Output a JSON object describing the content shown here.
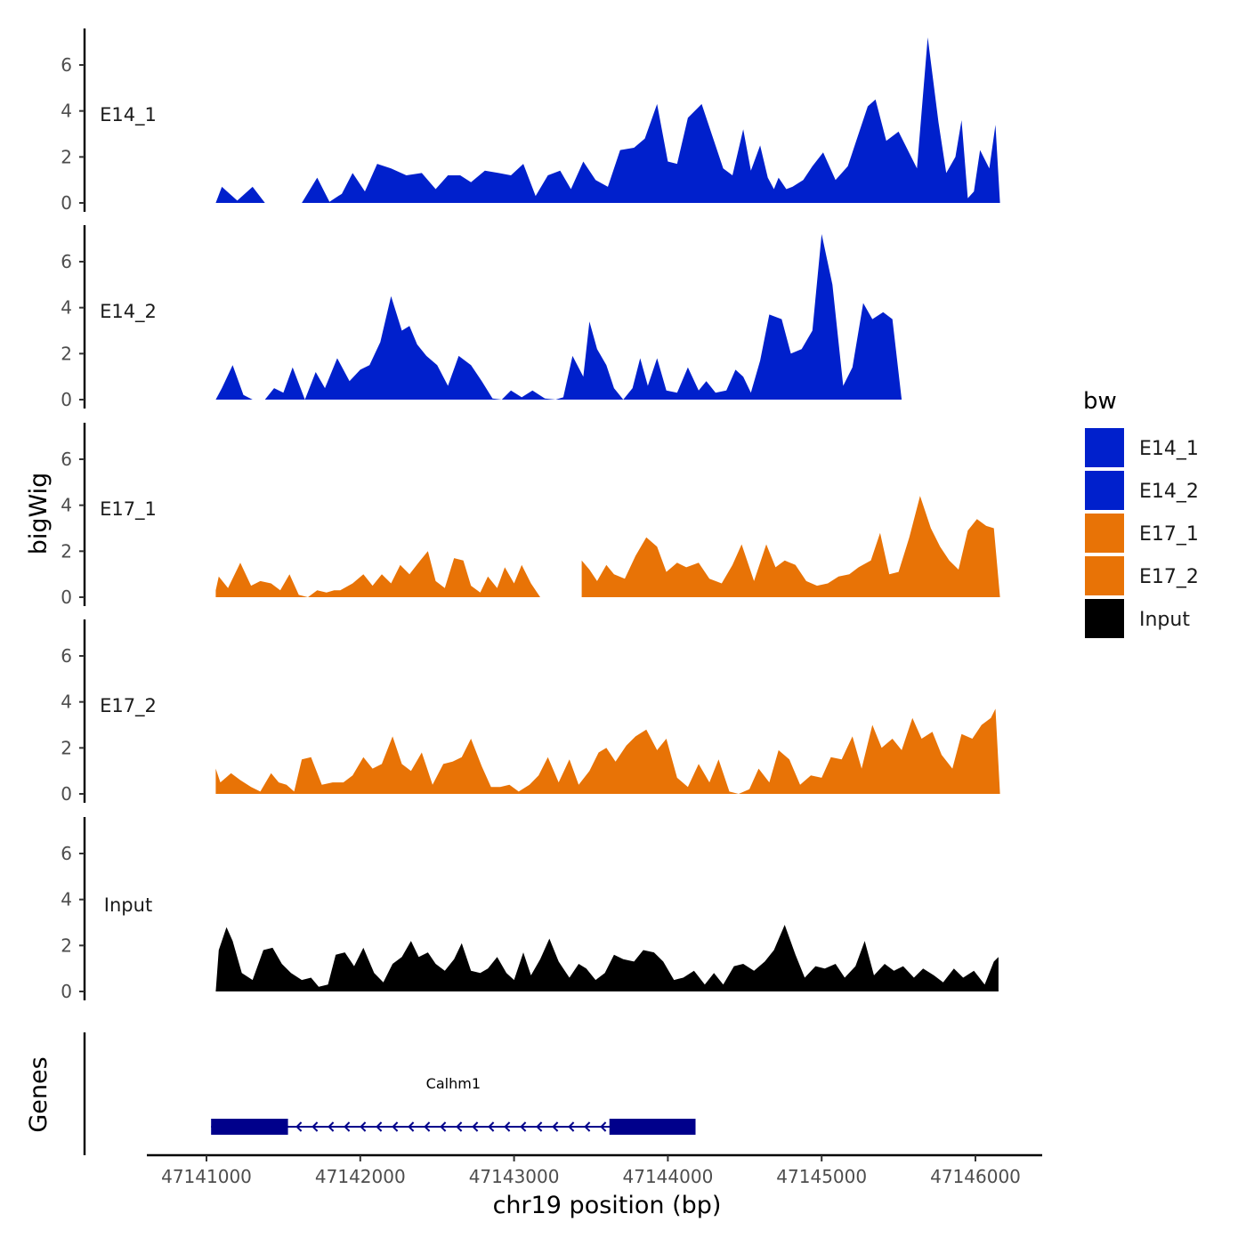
{
  "chart_data": {
    "type": "area",
    "chromosome": "chr19",
    "xlabel": "chr19 position (bp)",
    "ylabel": "bigWig",
    "ylim": [
      0,
      7.6
    ],
    "yticks": [
      0,
      2,
      4,
      6
    ],
    "xlim": [
      47140630,
      47146450
    ],
    "xticks": [
      47141000,
      47142000,
      47143000,
      47144000,
      47145000,
      47146000
    ],
    "xtick_labels": [
      "47141000",
      "47142000",
      "47143000",
      "47144000",
      "47145000",
      "47146000"
    ],
    "ytick_labels": [
      "0",
      "2",
      "4",
      "6"
    ],
    "legend": {
      "title": "bw",
      "items": [
        {
          "label": "E14_1",
          "color": "#0020CC"
        },
        {
          "label": "E14_2",
          "color": "#0020CC"
        },
        {
          "label": "E17_1",
          "color": "#E87306"
        },
        {
          "label": "E17_2",
          "color": "#E87306"
        },
        {
          "label": "Input",
          "color": "#000000"
        }
      ]
    },
    "series": [
      {
        "name": "E14_1",
        "color": "#0020CC",
        "x": [
          47141060,
          47141100,
          47141200,
          47141300,
          47141380,
          47141620,
          47141720,
          47141800,
          47141880,
          47141950,
          47142030,
          47142110,
          47142200,
          47142300,
          47142400,
          47142490,
          47142570,
          47142650,
          47142720,
          47142810,
          47142900,
          47142980,
          47143060,
          47143140,
          47143220,
          47143300,
          47143370,
          47143450,
          47143530,
          47143610,
          47143690,
          47143780,
          47143850,
          47143930,
          47144000,
          47144060,
          47144130,
          47144220,
          47144290,
          47144360,
          47144420,
          47144490,
          47144540,
          47144600,
          47144650,
          47144690,
          47144720,
          47144770,
          47144810,
          47144880,
          47144940,
          47145010,
          47145090,
          47145170,
          47145250,
          47145300,
          47145350,
          47145420,
          47145500,
          47145560,
          47145620,
          47145690,
          47145760,
          47145810,
          47145870,
          47145910,
          47145950,
          47145990,
          47146030,
          47146090,
          47146130,
          47146160
        ],
        "y": [
          0,
          0.7,
          0.1,
          0.7,
          0,
          0,
          1.1,
          0.05,
          0.4,
          1.3,
          0.5,
          1.7,
          1.5,
          1.2,
          1.3,
          0.6,
          1.2,
          1.2,
          0.9,
          1.4,
          1.3,
          1.2,
          1.7,
          0.3,
          1.2,
          1.4,
          0.6,
          1.8,
          1.0,
          0.7,
          2.3,
          2.4,
          2.8,
          4.3,
          1.8,
          1.7,
          3.7,
          4.3,
          2.9,
          1.5,
          1.2,
          3.2,
          1.4,
          2.5,
          1.1,
          0.6,
          1.1,
          0.6,
          0.7,
          1.0,
          1.6,
          2.2,
          1.0,
          1.6,
          3.2,
          4.2,
          4.5,
          2.7,
          3.1,
          2.3,
          1.5,
          7.2,
          3.5,
          1.3,
          2.0,
          3.6,
          0.2,
          0.5,
          2.3,
          1.5,
          3.4,
          0
        ],
        "gaps": [
          [
            47141380,
            47141620
          ]
        ]
      },
      {
        "name": "E14_2",
        "color": "#0020CC",
        "x": [
          47141060,
          47141100,
          47141170,
          47141240,
          47141300,
          47141380,
          47141440,
          47141500,
          47141560,
          47141640,
          47141710,
          47141770,
          47141850,
          47141930,
          47142000,
          47142060,
          47142130,
          47142200,
          47142270,
          47142320,
          47142370,
          47142430,
          47142500,
          47142570,
          47142640,
          47142720,
          47142790,
          47142860,
          47142920,
          47142980,
          47143050,
          47143120,
          47143200,
          47143270,
          47143320,
          47143380,
          47143450,
          47143490,
          47143540,
          47143600,
          47143650,
          47143710,
          47143770,
          47143820,
          47143870,
          47143930,
          47143990,
          47144060,
          47144130,
          47144200,
          47144250,
          47144310,
          47144380,
          47144440,
          47144490,
          47144540,
          47144600,
          47144660,
          47144740,
          47144800,
          47144870,
          47144940,
          47145000,
          47145070,
          47145140,
          47145200,
          47145270,
          47145330,
          47145400,
          47145460,
          47145520,
          47145580,
          47145630,
          47145690,
          47145750,
          47145800,
          47145850,
          47145910,
          47145960,
          47146020,
          47146070,
          47146130,
          47146160
        ],
        "y": [
          0,
          0.5,
          1.5,
          0.2,
          0,
          0,
          0.5,
          0.3,
          1.4,
          0,
          1.2,
          0.5,
          1.8,
          0.8,
          1.3,
          1.5,
          2.5,
          4.5,
          3.0,
          3.2,
          2.4,
          1.9,
          1.5,
          0.6,
          1.9,
          1.5,
          0.8,
          0.05,
          0,
          0.4,
          0.1,
          0.4,
          0.05,
          0,
          0.1,
          1.9,
          1.0,
          3.4,
          2.2,
          1.5,
          0.5,
          0,
          0.5,
          1.8,
          0.6,
          1.8,
          0.4,
          0.3,
          1.4,
          0.4,
          0.8,
          0.3,
          0.4,
          1.3,
          1.0,
          0.3,
          1.7,
          3.7,
          3.5,
          2.0,
          2.2,
          3.0,
          7.2,
          5.0,
          0.6,
          1.4,
          4.2,
          3.5,
          3.8,
          3.5,
          0,
          0,
          0,
          0,
          0,
          0,
          0,
          0,
          0,
          0,
          0,
          0,
          0
        ],
        "gaps": []
      },
      {
        "name": "E17_1",
        "color": "#E87306",
        "x": [
          47141060,
          47141080,
          47141140,
          47141220,
          47141290,
          47141350,
          47141420,
          47141480,
          47141540,
          47141600,
          47141660,
          47141720,
          47141780,
          47141830,
          47141870,
          47141950,
          47142020,
          47142080,
          47142140,
          47142200,
          47142260,
          47142320,
          47142390,
          47142440,
          47142490,
          47142550,
          47142610,
          47142670,
          47142720,
          47142780,
          47142830,
          47142890,
          47142940,
          47143000,
          47143050,
          47143110,
          47143170,
          47143220,
          47143270,
          47143310,
          47143370,
          47143440,
          47143490,
          47143540,
          47143600,
          47143650,
          47143720,
          47143790,
          47143860,
          47143930,
          47143990,
          47144060,
          47144120,
          47144200,
          47144270,
          47144350,
          47144420,
          47144480,
          47144560,
          47144640,
          47144700,
          47144760,
          47144830,
          47144900,
          47144970,
          47145040,
          47145110,
          47145180,
          47145240,
          47145320,
          47145380,
          47145440,
          47145500,
          47145570,
          47145640,
          47145710,
          47145770,
          47145830,
          47145890,
          47145950,
          47146010,
          47146070,
          47146120,
          47146160
        ],
        "y": [
          0.3,
          0.9,
          0.4,
          1.5,
          0.5,
          0.7,
          0.6,
          0.3,
          1.0,
          0.1,
          0,
          0.3,
          0.2,
          0.3,
          0.3,
          0.6,
          1.0,
          0.5,
          1.0,
          0.6,
          1.4,
          1.0,
          1.6,
          2.0,
          0.7,
          0.4,
          1.7,
          1.6,
          0.5,
          0.2,
          0.9,
          0.4,
          1.3,
          0.6,
          1.4,
          0.6,
          0,
          0,
          0,
          0,
          0.05,
          1.6,
          1.2,
          0.7,
          1.4,
          1.0,
          0.8,
          1.8,
          2.6,
          2.2,
          1.1,
          1.5,
          1.3,
          1.5,
          0.8,
          0.6,
          1.4,
          2.3,
          0.7,
          2.3,
          1.3,
          1.6,
          1.4,
          0.7,
          0.5,
          0.6,
          0.9,
          1.0,
          1.3,
          1.6,
          2.8,
          1.0,
          1.1,
          2.6,
          4.4,
          3.0,
          2.2,
          1.6,
          1.2,
          2.9,
          3.4,
          3.1,
          3.0,
          0
        ],
        "gaps": [
          [
            47143240,
            47143400
          ]
        ]
      },
      {
        "name": "E17_2",
        "color": "#E87306",
        "x": [
          47141060,
          47141090,
          47141160,
          47141220,
          47141290,
          47141350,
          47141420,
          47141470,
          47141520,
          47141570,
          47141620,
          47141680,
          47141750,
          47141820,
          47141890,
          47141950,
          47142020,
          47142080,
          47142140,
          47142210,
          47142270,
          47142330,
          47142400,
          47142470,
          47142540,
          47142600,
          47142660,
          47142720,
          47142790,
          47142850,
          47142910,
          47142970,
          47143030,
          47143100,
          47143160,
          47143220,
          47143290,
          47143360,
          47143420,
          47143490,
          47143550,
          47143600,
          47143660,
          47143730,
          47143790,
          47143860,
          47143930,
          47143990,
          47144060,
          47144130,
          47144200,
          47144270,
          47144330,
          47144400,
          47144460,
          47144530,
          47144590,
          47144660,
          47144720,
          47144790,
          47144860,
          47144930,
          47145000,
          47145060,
          47145130,
          47145200,
          47145260,
          47145330,
          47145390,
          47145460,
          47145520,
          47145590,
          47145650,
          47145720,
          47145780,
          47145850,
          47145910,
          47145980,
          47146040,
          47146100,
          47146130,
          47146160
        ],
        "y": [
          1.1,
          0.5,
          0.9,
          0.6,
          0.3,
          0.1,
          0.9,
          0.5,
          0.4,
          0.1,
          1.5,
          1.6,
          0.4,
          0.5,
          0.5,
          0.8,
          1.6,
          1.1,
          1.3,
          2.5,
          1.3,
          1.0,
          1.8,
          0.4,
          1.3,
          1.4,
          1.6,
          2.4,
          1.2,
          0.3,
          0.3,
          0.4,
          0.1,
          0.4,
          0.8,
          1.6,
          0.5,
          1.5,
          0.4,
          1.0,
          1.8,
          2.0,
          1.4,
          2.1,
          2.5,
          2.8,
          1.9,
          2.4,
          0.7,
          0.3,
          1.3,
          0.5,
          1.5,
          0.1,
          0,
          0.2,
          1.1,
          0.5,
          1.9,
          1.5,
          0.4,
          0.8,
          0.7,
          1.6,
          1.5,
          2.5,
          1.1,
          3.0,
          2.0,
          2.4,
          1.9,
          3.3,
          2.4,
          2.7,
          1.7,
          1.1,
          2.6,
          2.4,
          3.0,
          3.3,
          3.7,
          0
        ],
        "gaps": []
      },
      {
        "name": "Input",
        "color": "#000000",
        "x": [
          47141060,
          47141080,
          47141130,
          47141170,
          47141230,
          47141300,
          47141370,
          47141430,
          47141490,
          47141550,
          47141620,
          47141680,
          47141730,
          47141790,
          47141840,
          47141900,
          47141960,
          47142020,
          47142090,
          47142150,
          47142210,
          47142270,
          47142330,
          47142380,
          47142440,
          47142490,
          47142550,
          47142610,
          47142660,
          47142720,
          47142780,
          47142830,
          47142890,
          47142950,
          47143000,
          47143060,
          47143110,
          47143170,
          47143230,
          47143290,
          47143360,
          47143420,
          47143470,
          47143530,
          47143590,
          47143650,
          47143710,
          47143780,
          47143840,
          47143910,
          47143970,
          47144040,
          47144100,
          47144170,
          47144240,
          47144300,
          47144360,
          47144430,
          47144490,
          47144560,
          47144630,
          47144690,
          47144760,
          47144830,
          47144890,
          47144960,
          47145020,
          47145090,
          47145150,
          47145220,
          47145280,
          47145340,
          47145410,
          47145470,
          47145530,
          47145600,
          47145660,
          47145730,
          47145790,
          47145860,
          47145920,
          47145990,
          47146060,
          47146120,
          47146150
        ],
        "y": [
          0,
          1.8,
          2.8,
          2.2,
          0.8,
          0.5,
          1.8,
          1.9,
          1.2,
          0.8,
          0.5,
          0.6,
          0.2,
          0.3,
          1.6,
          1.7,
          1.1,
          1.9,
          0.8,
          0.4,
          1.2,
          1.5,
          2.2,
          1.5,
          1.7,
          1.2,
          0.9,
          1.4,
          2.1,
          0.9,
          0.8,
          1.0,
          1.5,
          0.8,
          0.5,
          1.7,
          0.7,
          1.4,
          2.3,
          1.3,
          0.6,
          1.2,
          1.0,
          0.5,
          0.8,
          1.6,
          1.4,
          1.3,
          1.8,
          1.7,
          1.3,
          0.5,
          0.6,
          0.9,
          0.3,
          0.8,
          0.3,
          1.1,
          1.2,
          0.9,
          1.3,
          1.8,
          2.9,
          1.6,
          0.6,
          1.1,
          1.0,
          1.2,
          0.6,
          1.1,
          2.2,
          0.7,
          1.2,
          0.9,
          1.1,
          0.6,
          1.0,
          0.7,
          0.4,
          1.0,
          0.6,
          0.9,
          0.3,
          1.3,
          1.5
        ],
        "gaps": []
      }
    ],
    "genes": {
      "title": "Genes",
      "items": [
        {
          "name": "Calhm1",
          "start": 47141030,
          "end": 47144180,
          "strand": "-",
          "exons": [
            [
              47141030,
              47141530
            ],
            [
              47143620,
              47144180
            ]
          ],
          "color": "#00008B"
        }
      ]
    }
  }
}
